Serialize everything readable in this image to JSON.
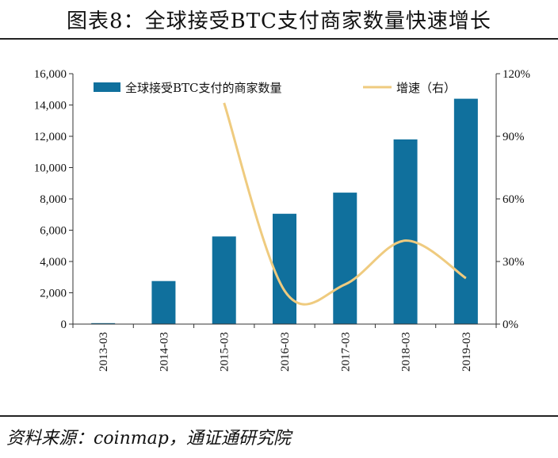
{
  "header": {
    "title": "图表8：全球接受BTC支付商家数量快速增长"
  },
  "footer": {
    "source": "资料来源：coinmap，通证通研究院"
  },
  "colors": {
    "bar": "#10709d",
    "line": "#efcb7f",
    "axis": "#333333"
  },
  "chart_data": {
    "type": "bar",
    "title": "",
    "categories": [
      "2013-03",
      "2014-03",
      "2015-03",
      "2016-03",
      "2017-03",
      "2018-03",
      "2019-03"
    ],
    "series": [
      {
        "name": "全球接受BTC支付的商家数量",
        "type": "bar",
        "axis": "left",
        "values": [
          60,
          2750,
          5600,
          7050,
          8400,
          11800,
          14400
        ]
      },
      {
        "name": "增速（右）",
        "type": "line",
        "axis": "right",
        "values": [
          null,
          null,
          106,
          16,
          19,
          40,
          22
        ]
      }
    ],
    "y_left": {
      "ylim": [
        0,
        16000
      ],
      "ticks": [
        "0",
        "2,000",
        "4,000",
        "6,000",
        "8,000",
        "10,000",
        "12,000",
        "14,000",
        "16,000"
      ]
    },
    "y_right": {
      "ylim": [
        0,
        120
      ],
      "unit": "%",
      "ticks": [
        "0%",
        "30%",
        "60%",
        "90%",
        "120%"
      ]
    },
    "legend": {
      "placement": "top",
      "items": [
        "全球接受BTC支付的商家数量",
        "增速（右）"
      ]
    },
    "grid": false
  }
}
